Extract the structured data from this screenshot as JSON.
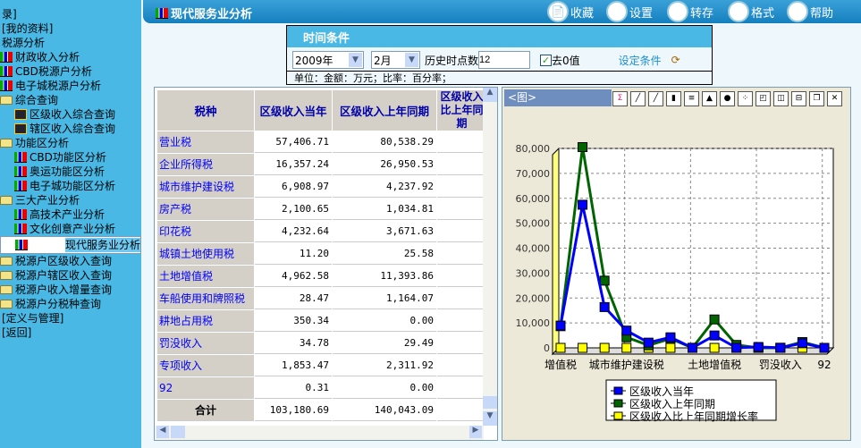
{
  "sidebar": {
    "items": [
      {
        "label": "录]",
        "icon": "none",
        "level": 0
      },
      {
        "label": "[我的资料]",
        "icon": "none",
        "level": 0
      },
      {
        "label": "税源分析",
        "icon": "none",
        "level": 0
      },
      {
        "label": "财政收入分析",
        "icon": "bar-chart-icon",
        "level": 1
      },
      {
        "label": "CBD税源户分析",
        "icon": "bar-chart-icon",
        "level": 1
      },
      {
        "label": "电子城税源户分析",
        "icon": "bar-chart-icon",
        "level": 1
      },
      {
        "label": "综合查询",
        "icon": "folder-icon",
        "level": 1
      },
      {
        "label": "区级收入综合查询",
        "icon": "grid-query-icon",
        "level": 2
      },
      {
        "label": "辖区收入综合查询",
        "icon": "grid-query-icon",
        "level": 2
      },
      {
        "label": "功能区分析",
        "icon": "folder-icon",
        "level": 1
      },
      {
        "label": "CBD功能区分析",
        "icon": "bar-chart-icon",
        "level": 2
      },
      {
        "label": "奥运功能区分析",
        "icon": "bar-chart-icon",
        "level": 2
      },
      {
        "label": "电子城功能区分析",
        "icon": "bar-chart-icon",
        "level": 2
      },
      {
        "label": "三大产业分析",
        "icon": "folder-icon",
        "level": 1
      },
      {
        "label": "高技术产业分析",
        "icon": "bar-chart-icon",
        "level": 2
      },
      {
        "label": "文化创意产业分析",
        "icon": "bar-chart-icon",
        "level": 2
      },
      {
        "label": "现代服务业分析",
        "icon": "bar-chart-icon",
        "level": 2,
        "selected": true
      },
      {
        "label": "税源户区级收入查询",
        "icon": "folder-icon",
        "level": 1
      },
      {
        "label": "税源户辖区收入查询",
        "icon": "folder-icon",
        "level": 1
      },
      {
        "label": "税源户收入增量查询",
        "icon": "folder-icon",
        "level": 1
      },
      {
        "label": "税源户分税种查询",
        "icon": "folder-icon",
        "level": 1
      },
      {
        "label": "[定义与管理]",
        "icon": "none",
        "level": 0
      },
      {
        "label": "[返回]",
        "icon": "none",
        "level": 0
      }
    ]
  },
  "header": {
    "title": "现代服务业分析",
    "buttons": [
      {
        "label": "收藏",
        "icon": "favorite-icon"
      },
      {
        "label": "设置",
        "icon": "settings-icon"
      },
      {
        "label": "转存",
        "icon": "save-as-icon"
      },
      {
        "label": "格式",
        "icon": "format-icon"
      },
      {
        "label": "帮助",
        "icon": "help-icon"
      }
    ]
  },
  "conditions": {
    "title": "时间条件",
    "year": "2009年",
    "month": "2月",
    "history_label": "历史时点数",
    "history_value": "12",
    "remove_zero_label": "去0值",
    "remove_zero_checked": true,
    "set_link": "设定条件",
    "unit_text": "单位：金额：万元；比率：百分率；"
  },
  "table": {
    "headers": [
      "税种",
      "区级收入当年",
      "区级收入上年同期",
      "区级收入比上年同期"
    ],
    "rows": [
      [
        "营业税",
        "57,406.71",
        "80,538.29"
      ],
      [
        "企业所得税",
        "16,357.24",
        "26,950.53"
      ],
      [
        "城市维护建设税",
        "6,908.97",
        "4,237.92"
      ],
      [
        "房产税",
        "2,100.65",
        "1,034.81"
      ],
      [
        "印花税",
        "4,232.64",
        "3,671.63"
      ],
      [
        "城镇土地使用税",
        "11.20",
        "25.58"
      ],
      [
        "土地增值税",
        "4,962.58",
        "11,393.86"
      ],
      [
        "车船使用和牌照税",
        "28.47",
        "1,164.07"
      ],
      [
        "耕地占用税",
        "350.34",
        "0.00"
      ],
      [
        "罚没收入",
        "34.78",
        "29.49"
      ],
      [
        "专项收入",
        "1,853.47",
        "2,311.92"
      ],
      [
        "92",
        "0.31",
        "0.00"
      ]
    ],
    "total": [
      "合计",
      "103,180.69",
      "140,043.09"
    ]
  },
  "chart_panel": {
    "title": "<图>"
  },
  "chart_data": {
    "type": "line",
    "categories": [
      "增值税",
      "营业税",
      "企业所得税",
      "城市维护建设税",
      "房产税",
      "印花税",
      "城镇土地使用税",
      "土地增值税",
      "车船使用和牌照税",
      "耕地占用税",
      "罚没收入",
      "专项收入",
      "92"
    ],
    "visible_tick_labels": [
      "增值税",
      "城市维护建设税",
      "土地增值税",
      "罚没收入",
      "92"
    ],
    "ylim": [
      0,
      80000
    ],
    "yticks": [
      "0",
      "10,000",
      "20,000",
      "30,000",
      "40,000",
      "50,000",
      "60,000",
      "70,000",
      "80,000"
    ],
    "grid": true,
    "legend": "bottom",
    "series": [
      {
        "name": "区级收入当年",
        "color": "#0000ff",
        "values": [
          8934,
          57406.71,
          16357.24,
          6908.97,
          2100.65,
          4232.64,
          11.2,
          4962.58,
          28.47,
          350.34,
          34.78,
          1853.47,
          0.31
        ]
      },
      {
        "name": "区级收入上年同期",
        "color": "#006400",
        "values": [
          8684,
          80538.29,
          26950.53,
          4237.92,
          1034.81,
          3671.63,
          25.58,
          11393.86,
          1164.07,
          0,
          29.49,
          2311.92,
          0
        ]
      },
      {
        "name": "区级收入比上年同期增长率",
        "color": "#ffff00",
        "values": [
          2.9,
          -28.7,
          -39.3,
          63.0,
          103.0,
          15.3,
          -56.2,
          -56.4,
          -97.6,
          0,
          17.9,
          -19.8,
          0
        ]
      }
    ]
  }
}
